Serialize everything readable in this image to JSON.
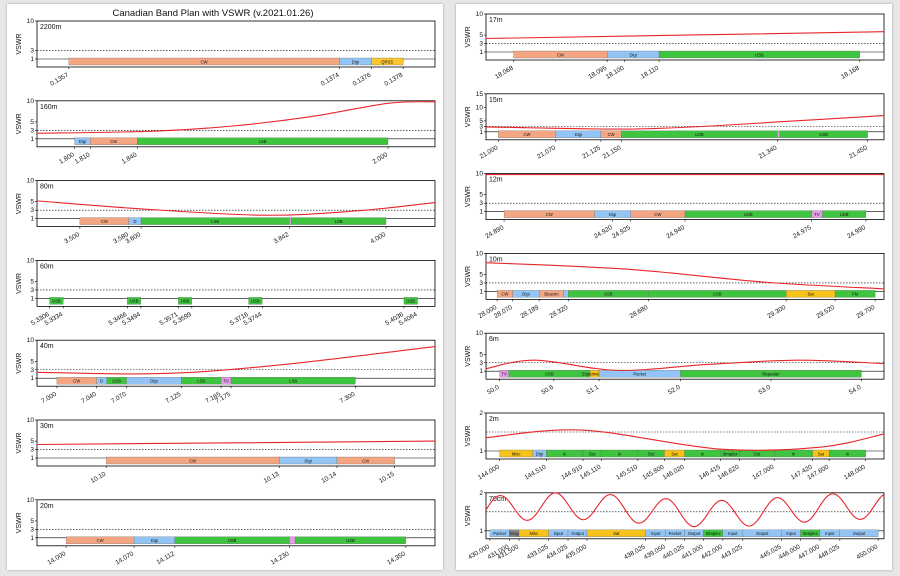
{
  "title": "Canadian Band Plan with VSWR  (v.2021.01.26)",
  "ylabel": "VSWR",
  "colors": {
    "CW": "#f4a582",
    "Digi": "#92c5f5",
    "QRSS": "#fbc531",
    "USB": "#3ec43e",
    "LSB": "#3ec43e",
    "TV": "#e39be8",
    "D": "#92c5f5",
    "Beacon": "#f4a582",
    "Sat": "#f7c21a",
    "FM": "#3ec43e",
    "Misc": "#f7c21a",
    "In": "#3ec43e",
    "Out": "#3ec43e",
    "Packet": "#92c5f5",
    "Simplex": "#3ec43e",
    "Input": "#92c5f5",
    "Output": "#92c5f5",
    "Repeater": "#3ec43e",
    "Experimenter": "#f7c21a",
    "Gray": "#888888",
    "curve": "#e8262a"
  },
  "chart_data": [
    {
      "band": "2200m",
      "xlim": [
        0.1355,
        0.138
      ],
      "ylim": [
        1,
        10
      ],
      "yticks": [
        1,
        3,
        10
      ],
      "vswr": null,
      "segments": [
        {
          "s": 0.1357,
          "e": 0.1374,
          "l": "CW"
        },
        {
          "s": 0.1374,
          "e": 0.1376,
          "l": "Digi"
        },
        {
          "s": 0.1376,
          "e": 0.1378,
          "l": "QRSS"
        }
      ],
      "xticks": [
        "0.1357",
        "0.1374",
        "0.1376",
        "0.1378"
      ],
      "xvals": [
        0.1357,
        0.1374,
        0.1376,
        0.1378
      ]
    },
    {
      "band": "160m",
      "xlim": [
        1.776,
        2.03
      ],
      "ylim": [
        1,
        10
      ],
      "yticks": [
        1,
        3,
        5,
        10
      ],
      "vswr": [
        [
          1.776,
          2.3
        ],
        [
          1.85,
          2.8
        ],
        [
          1.9,
          4.0
        ],
        [
          1.95,
          6.2
        ],
        [
          2.0,
          9.4
        ],
        [
          2.03,
          11
        ]
      ],
      "segments": [
        {
          "s": 1.8,
          "e": 1.81,
          "l": "Digi"
        },
        {
          "s": 1.81,
          "e": 1.84,
          "l": "CW"
        },
        {
          "s": 1.84,
          "e": 2.0,
          "l": "LSB"
        }
      ],
      "xticks": [
        "1.800",
        "1.810",
        "1.840",
        "2.000"
      ],
      "xvals": [
        1.8,
        1.81,
        1.84,
        2.0
      ]
    },
    {
      "band": "80m",
      "xlim": [
        3.43,
        4.08
      ],
      "ylim": [
        1,
        10
      ],
      "yticks": [
        1,
        3,
        5,
        10
      ],
      "vswr": [
        [
          3.43,
          5.2
        ],
        [
          3.6,
          3.3
        ],
        [
          3.8,
          1.8
        ],
        [
          3.95,
          2.8
        ],
        [
          4.08,
          4.8
        ]
      ],
      "segments": [
        {
          "s": 3.5,
          "e": 3.58,
          "l": "CW"
        },
        {
          "s": 3.58,
          "e": 3.6,
          "l": "D"
        },
        {
          "s": 3.6,
          "e": 3.842,
          "l": "LSB"
        },
        {
          "s": 3.842,
          "e": 3.845,
          "l": "TV"
        },
        {
          "s": 3.845,
          "e": 4.0,
          "l": "LSB"
        }
      ],
      "xticks": [
        "3.500",
        "3.580",
        "3.600",
        "3.842",
        "4.000"
      ],
      "xvals": [
        3.5,
        3.58,
        3.6,
        3.842,
        4.0
      ]
    },
    {
      "band": "60m",
      "xlim": [
        5.328,
        5.41
      ],
      "ylim": [
        1,
        10
      ],
      "yticks": [
        1,
        3,
        5,
        10
      ],
      "vswr": null,
      "segments": [
        {
          "s": 5.3306,
          "e": 5.3334,
          "l": "USB"
        },
        {
          "s": 5.3466,
          "e": 5.3494,
          "l": "USB"
        },
        {
          "s": 5.3571,
          "e": 5.3599,
          "l": "USB"
        },
        {
          "s": 5.3716,
          "e": 5.3744,
          "l": "USB"
        },
        {
          "s": 5.4036,
          "e": 5.4064,
          "l": "USB"
        }
      ],
      "xticks": [
        "5.3306",
        "5.3334",
        "5.3466",
        "5.3494",
        "5.3571",
        "5.3599",
        "5.3716",
        "5.3744",
        "5.4036",
        "5.4064"
      ],
      "xvals": [
        5.3306,
        5.3334,
        5.3466,
        5.3494,
        5.3571,
        5.3599,
        5.3716,
        5.3744,
        5.4036,
        5.4064
      ]
    },
    {
      "band": "40m",
      "xlim": [
        6.98,
        7.38
      ],
      "ylim": [
        1,
        10
      ],
      "yticks": [
        1,
        3,
        5,
        10
      ],
      "vswr": [
        [
          6.98,
          2.4
        ],
        [
          7.08,
          2.0
        ],
        [
          7.15,
          2.6
        ],
        [
          7.25,
          4.8
        ],
        [
          7.38,
          8.5
        ]
      ],
      "segments": [
        {
          "s": 7.0,
          "e": 7.04,
          "l": "CW"
        },
        {
          "s": 7.04,
          "e": 7.05,
          "l": "D"
        },
        {
          "s": 7.05,
          "e": 7.07,
          "l": "USB"
        },
        {
          "s": 7.07,
          "e": 7.125,
          "l": "Digi"
        },
        {
          "s": 7.125,
          "e": 7.165,
          "l": "LSB"
        },
        {
          "s": 7.165,
          "e": 7.175,
          "l": "TV"
        },
        {
          "s": 7.175,
          "e": 7.3,
          "l": "LSB"
        }
      ],
      "xticks": [
        "7.000",
        "7.040",
        "7.070",
        "7.125",
        "7.165",
        "7.175",
        "7.300"
      ],
      "xvals": [
        7.0,
        7.04,
        7.07,
        7.125,
        7.165,
        7.175,
        7.3
      ]
    },
    {
      "band": "30m",
      "xlim": [
        10.088,
        10.157
      ],
      "ylim": [
        1,
        10
      ],
      "yticks": [
        1,
        3,
        5,
        10
      ],
      "vswr": [
        [
          10.088,
          4.2
        ],
        [
          10.157,
          5.0
        ]
      ],
      "segments": [
        {
          "s": 10.1,
          "e": 10.13,
          "l": "CW"
        },
        {
          "s": 10.13,
          "e": 10.14,
          "l": "Digi"
        },
        {
          "s": 10.14,
          "e": 10.15,
          "l": "CW"
        }
      ],
      "xticks": [
        "10.10",
        "10.13",
        "10.14",
        "10.15"
      ],
      "xvals": [
        10.1,
        10.13,
        10.14,
        10.15
      ]
    },
    {
      "band": "20m",
      "xlim": [
        13.97,
        14.38
      ],
      "ylim": [
        1,
        10
      ],
      "yticks": [
        1,
        3,
        5,
        10
      ],
      "vswr": null,
      "segments": [
        {
          "s": 14.0,
          "e": 14.07,
          "l": "CW"
        },
        {
          "s": 14.07,
          "e": 14.112,
          "l": "Digi"
        },
        {
          "s": 14.112,
          "e": 14.23,
          "l": "USB"
        },
        {
          "s": 14.23,
          "e": 14.236,
          "l": "TV"
        },
        {
          "s": 14.236,
          "e": 14.35,
          "l": "USB"
        }
      ],
      "xticks": [
        "14.000",
        "14.070",
        "14.112",
        "14.230",
        "14.350"
      ],
      "xvals": [
        14.0,
        14.07,
        14.112,
        14.23,
        14.35
      ]
    },
    {
      "band": "17m",
      "xlim": [
        18.06,
        18.175
      ],
      "ylim": [
        1,
        10
      ],
      "yticks": [
        1,
        3,
        5,
        10
      ],
      "vswr": [
        [
          18.06,
          4.2
        ],
        [
          18.175,
          5.8
        ]
      ],
      "segments": [
        {
          "s": 18.068,
          "e": 18.095,
          "l": "CW"
        },
        {
          "s": 18.095,
          "e": 18.11,
          "l": "Digi"
        },
        {
          "s": 18.11,
          "e": 18.168,
          "l": "USB"
        }
      ],
      "xticks": [
        "18.068",
        "18.095",
        "18.100",
        "18.110",
        "18.168"
      ],
      "xvals": [
        18.068,
        18.095,
        18.1,
        18.11,
        18.168
      ]
    },
    {
      "band": "15m",
      "xlim": [
        20.985,
        21.47
      ],
      "ylim": [
        1,
        15
      ],
      "yticks": [
        1,
        3,
        5,
        10,
        15
      ],
      "vswr": [
        [
          20.985,
          2.8
        ],
        [
          21.15,
          2.0
        ],
        [
          21.25,
          3.0
        ],
        [
          21.35,
          4.8
        ],
        [
          21.47,
          7.0
        ]
      ],
      "segments": [
        {
          "s": 21.0,
          "e": 21.07,
          "l": "CW"
        },
        {
          "s": 21.07,
          "e": 21.125,
          "l": "Digi"
        },
        {
          "s": 21.125,
          "e": 21.15,
          "l": "CW"
        },
        {
          "s": 21.15,
          "e": 21.34,
          "l": "USB"
        },
        {
          "s": 21.34,
          "e": 21.343,
          "l": "TV"
        },
        {
          "s": 21.343,
          "e": 21.45,
          "l": "USB"
        }
      ],
      "xticks": [
        "21.000",
        "21.070",
        "21.125",
        "21.150",
        "21.340",
        "21.450"
      ],
      "xvals": [
        21.0,
        21.07,
        21.125,
        21.15,
        21.34,
        21.45
      ]
    },
    {
      "band": "12m",
      "xlim": [
        24.885,
        24.995
      ],
      "ylim": [
        1,
        10
      ],
      "yticks": [
        1,
        3,
        5,
        10
      ],
      "vswr": [
        [
          24.885,
          9.8
        ],
        [
          24.995,
          9.8
        ]
      ],
      "segments": [
        {
          "s": 24.89,
          "e": 24.915,
          "l": "CW"
        },
        {
          "s": 24.915,
          "e": 24.925,
          "l": "Digi"
        },
        {
          "s": 24.925,
          "e": 24.94,
          "l": "CW"
        },
        {
          "s": 24.94,
          "e": 24.975,
          "l": "USB"
        },
        {
          "s": 24.975,
          "e": 24.978,
          "l": "TV"
        },
        {
          "s": 24.978,
          "e": 24.99,
          "l": "USB"
        }
      ],
      "xticks": [
        "24.890",
        "24.920",
        "24.925",
        "24.940",
        "24.975",
        "24.990"
      ],
      "xvals": [
        24.89,
        24.92,
        24.925,
        24.94,
        24.975,
        24.99
      ]
    },
    {
      "band": "10m",
      "xlim": [
        27.95,
        29.74
      ],
      "ylim": [
        1,
        10
      ],
      "yticks": [
        1,
        3,
        5,
        10
      ],
      "vswr": [
        [
          27.95,
          7.8
        ],
        [
          28.6,
          6.2
        ],
        [
          29.2,
          3.2
        ],
        [
          29.74,
          1.6
        ]
      ],
      "segments": [
        {
          "s": 28.0,
          "e": 28.07,
          "l": "CW"
        },
        {
          "s": 28.07,
          "e": 28.189,
          "l": "Digi"
        },
        {
          "s": 28.189,
          "e": 28.3,
          "l": "Beacon"
        },
        {
          "s": 28.3,
          "e": 28.32,
          "l": "D"
        },
        {
          "s": 28.32,
          "e": 28.68,
          "l": "USB"
        },
        {
          "s": 28.68,
          "e": 29.3,
          "l": "USB"
        },
        {
          "s": 29.3,
          "e": 29.52,
          "l": "Sat"
        },
        {
          "s": 29.52,
          "e": 29.7,
          "l": "FM"
        }
      ],
      "xticks": [
        "28.000",
        "28.070",
        "28.189",
        "28.320",
        "28.680",
        "29.300",
        "29.520",
        "29.700"
      ],
      "xvals": [
        28.0,
        28.07,
        28.189,
        28.32,
        28.68,
        29.3,
        29.52,
        29.7
      ]
    },
    {
      "band": "6m",
      "xlim": [
        49.85,
        54.25
      ],
      "ylim": [
        1,
        10
      ],
      "yticks": [
        1,
        3,
        5,
        10
      ],
      "vswr": [
        [
          49.85,
          1.6
        ],
        [
          50.4,
          3.6
        ],
        [
          51.3,
          1.2
        ],
        [
          52.3,
          2.6
        ],
        [
          53.3,
          3.6
        ],
        [
          54.25,
          2.8
        ]
      ],
      "segments": [
        {
          "s": 50.0,
          "e": 50.1,
          "l": "TV"
        },
        {
          "s": 50.1,
          "e": 51.0,
          "l": "USB"
        },
        {
          "s": 51.0,
          "e": 51.1,
          "l": "Experimenter"
        },
        {
          "s": 51.1,
          "e": 52.0,
          "l": "Packet"
        },
        {
          "s": 52.0,
          "e": 54.0,
          "l": "Repeater"
        }
      ],
      "xticks": [
        "50.0",
        "50.6",
        "51.1",
        "52.0",
        "53.0",
        "54.0"
      ],
      "xvals": [
        50.0,
        50.6,
        51.1,
        52.0,
        53.0,
        54.0
      ]
    },
    {
      "band": "2m",
      "xlim": [
        143.85,
        148.2
      ],
      "ylim": [
        1,
        2
      ],
      "yticks": [
        1,
        2
      ],
      "vswr": [
        [
          143.85,
          1.35
        ],
        [
          144.9,
          1.55
        ],
        [
          146.4,
          1.05
        ],
        [
          147.5,
          1.1
        ],
        [
          148.2,
          1.45
        ]
      ],
      "segments": [
        {
          "s": 144.0,
          "e": 144.36,
          "l": "Misc"
        },
        {
          "s": 144.36,
          "e": 144.51,
          "l": "Digi"
        },
        {
          "s": 144.51,
          "e": 144.91,
          "l": "In"
        },
        {
          "s": 144.91,
          "e": 145.11,
          "l": "Out"
        },
        {
          "s": 145.11,
          "e": 145.51,
          "l": "In"
        },
        {
          "s": 145.51,
          "e": 145.8,
          "l": "Out"
        },
        {
          "s": 145.8,
          "e": 146.02,
          "l": "Sat"
        },
        {
          "s": 146.02,
          "e": 146.415,
          "l": "In"
        },
        {
          "s": 146.415,
          "e": 146.62,
          "l": "Simplex"
        },
        {
          "s": 146.62,
          "e": 147.0,
          "l": "Out"
        },
        {
          "s": 147.0,
          "e": 147.42,
          "l": "In"
        },
        {
          "s": 147.42,
          "e": 147.6,
          "l": "Sat"
        },
        {
          "s": 147.6,
          "e": 148.0,
          "l": "In"
        }
      ],
      "xticks": [
        "144.000",
        "144.510",
        "144.910",
        "145.110",
        "145.510",
        "145.800",
        "146.020",
        "146.415",
        "146.620",
        "147.000",
        "147.420",
        "147.600",
        "148.000"
      ],
      "xvals": [
        144.0,
        144.51,
        144.91,
        145.11,
        145.51,
        145.8,
        146.02,
        146.415,
        146.62,
        147.0,
        147.42,
        147.6,
        148.0
      ]
    },
    {
      "band": "70cm",
      "xlim": [
        429.8,
        450.3
      ],
      "ylim": [
        1,
        2
      ],
      "yticks": [
        1,
        2
      ],
      "vswr": "wavy",
      "segments": [
        {
          "s": 430.0,
          "e": 431.0,
          "l": "Packet"
        },
        {
          "s": 431.0,
          "e": 431.5,
          "l": "Gray"
        },
        {
          "s": 431.5,
          "e": 433.025,
          "l": "Misc"
        },
        {
          "s": 433.025,
          "e": 434.025,
          "l": "Input"
        },
        {
          "s": 434.025,
          "e": 435.0,
          "l": "Output"
        },
        {
          "s": 435.0,
          "e": 438.025,
          "l": "Sat"
        },
        {
          "s": 438.025,
          "e": 439.05,
          "l": "Input"
        },
        {
          "s": 439.05,
          "e": 440.025,
          "l": "Packet"
        },
        {
          "s": 440.025,
          "e": 441.0,
          "l": "Output"
        },
        {
          "s": 441.0,
          "e": 442.0,
          "l": "Simplex"
        },
        {
          "s": 442.0,
          "e": 443.025,
          "l": "Input"
        },
        {
          "s": 443.025,
          "e": 445.025,
          "l": "Output"
        },
        {
          "s": 445.025,
          "e": 446.0,
          "l": "Input"
        },
        {
          "s": 446.0,
          "e": 447.0,
          "l": "Simplex"
        },
        {
          "s": 447.0,
          "e": 448.025,
          "l": "Input"
        },
        {
          "s": 448.025,
          "e": 450.0,
          "l": "Output"
        }
      ],
      "xticks": [
        "430.000",
        "431.000",
        "431.500",
        "433.025",
        "434.025",
        "435.000",
        "438.025",
        "439.050",
        "440.025",
        "441.000",
        "442.000",
        "443.025",
        "445.025",
        "446.000",
        "447.000",
        "448.025",
        "450.000"
      ],
      "xvals": [
        430.0,
        431.0,
        431.5,
        433.025,
        434.025,
        435.0,
        438.025,
        439.05,
        440.025,
        441.0,
        442.0,
        443.025,
        445.025,
        446.0,
        447.0,
        448.025,
        450.0
      ]
    }
  ],
  "segment_labels": {
    "USB_6m_1": "USB",
    "Experimenter": "Experimenter",
    "Packet_6m": "FM Simplex / Packet",
    "Repeater_a": "FM Repeater Input",
    "Repeater_b": "FM Repeater Output"
  }
}
